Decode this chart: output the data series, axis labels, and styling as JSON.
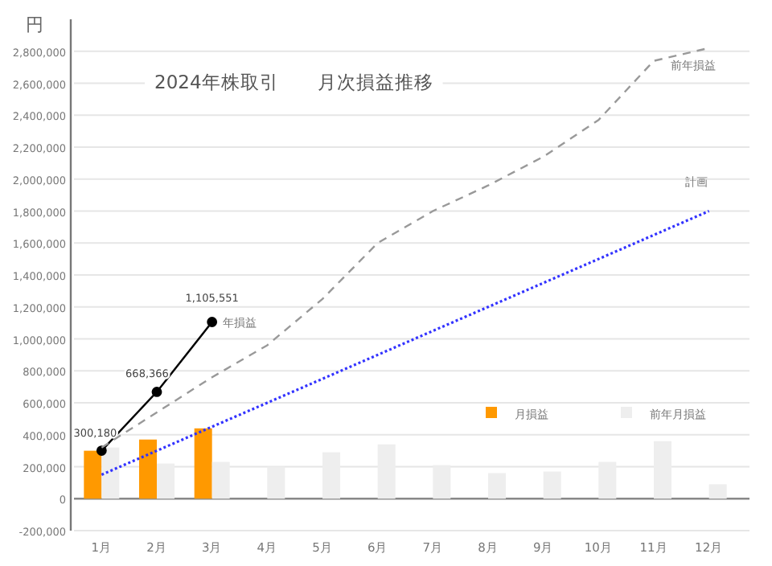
{
  "chart_data": {
    "type": "bar",
    "title": "2024年株取引　　月次損益推移",
    "ylabel": "円",
    "grid": "y",
    "legend": "right",
    "categories": [
      "1月",
      "2月",
      "3月",
      "4月",
      "5月",
      "6月",
      "7月",
      "8月",
      "9月",
      "10月",
      "11月",
      "12月"
    ],
    "ylim": [
      -200000,
      3000000
    ],
    "yticks": [
      {
        "value": -200000,
        "label": "-200,000"
      },
      {
        "value": 0,
        "label": "0"
      },
      {
        "value": 200000,
        "label": "200,000"
      },
      {
        "value": 400000,
        "label": "400,000"
      },
      {
        "value": 600000,
        "label": "600,000"
      },
      {
        "value": 800000,
        "label": "800,000"
      },
      {
        "value": 1000000,
        "label": "1,000,000"
      },
      {
        "value": 1200000,
        "label": "1,200,000"
      },
      {
        "value": 1400000,
        "label": "1,400,000"
      },
      {
        "value": 1600000,
        "label": "1,600,000"
      },
      {
        "value": 1800000,
        "label": "1,800,000"
      },
      {
        "value": 2000000,
        "label": "2,000,000"
      },
      {
        "value": 2200000,
        "label": "2,200,000"
      },
      {
        "value": 2400000,
        "label": "2,400,000"
      },
      {
        "value": 2600000,
        "label": "2,600,000"
      },
      {
        "value": 2800000,
        "label": "2,800,000"
      }
    ],
    "series": [
      {
        "name": "月損益",
        "color": "#ff9900",
        "values": [
          300000,
          370000,
          440000,
          null,
          null,
          null,
          null,
          null,
          null,
          null,
          null,
          null
        ]
      },
      {
        "name": "前年月損益",
        "color": "#eeeeee",
        "values": [
          320000,
          220000,
          230000,
          200000,
          290000,
          340000,
          210000,
          160000,
          170000,
          230000,
          360000,
          90000
        ]
      },
      {
        "name": "年損益",
        "type": "line",
        "color": "#000000",
        "marker": "circle",
        "line_style": "solid",
        "values": [
          300180,
          668366,
          1105551,
          null,
          null,
          null,
          null,
          null,
          null,
          null,
          null,
          null
        ],
        "value_labels": [
          "300,180",
          "668,366",
          "1,105,551",
          null,
          null,
          null,
          null,
          null,
          null,
          null,
          null,
          null
        ]
      },
      {
        "name": "前年損益",
        "type": "line",
        "color": "#999999",
        "marker": "none",
        "line_style": "dashed",
        "values": [
          320000,
          540000,
          760000,
          960000,
          1250000,
          1600000,
          1800000,
          1960000,
          2140000,
          2370000,
          2740000,
          2820000
        ]
      },
      {
        "name": "計画",
        "type": "line",
        "color": "#3333ff",
        "marker": "none",
        "line_style": "dotted",
        "values": [
          150000,
          300000,
          450000,
          600000,
          750000,
          900000,
          1050000,
          1200000,
          1350000,
          1500000,
          1650000,
          1800000
        ]
      }
    ]
  }
}
